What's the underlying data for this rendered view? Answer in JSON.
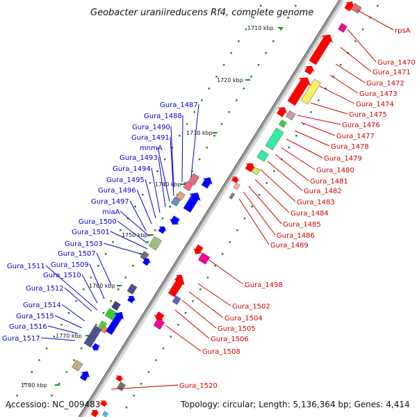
{
  "header": {
    "title": "Geobacter uraniireducens Rf4, complete genome"
  },
  "footer": {
    "accession": "Accession: NC_009483",
    "summary": "Topology: circular; Length: 5,136,364 bp; Genes: 4,414"
  },
  "colors": {
    "red_label": "#d00000",
    "blue_label": "#0000cc",
    "backbone": "#9a9a9a",
    "tick": "#1a8a1a"
  },
  "ruler": [
    {
      "label": "1710 kbp"
    },
    {
      "label": "1720 kbp"
    },
    {
      "label": "1730 kbp"
    },
    {
      "label": "1740 kbp"
    },
    {
      "label": "1750 kbp"
    },
    {
      "label": "1760 kbp"
    },
    {
      "label": "1770 kbp"
    },
    {
      "label": "1780 kbp"
    }
  ],
  "labels_right": [
    "rpsA",
    "Gura_1470",
    "Gura_1471",
    "Gura_1472",
    "Gura_1473",
    "Gura_1474",
    "Gura_1475",
    "Gura_1476",
    "Gura_1477",
    "Gura_1478",
    "Gura_1479",
    "Gura_1480",
    "Gura_1481",
    "Gura_1482",
    "Gura_1483",
    "Gura_1484",
    "Gura_1485",
    "Gura_1486",
    "Gura_1489",
    "Gura_1498",
    "Gura_1502",
    "Gura_1504",
    "Gura_1505",
    "Gura_1506",
    "Gura_1508",
    "Gura_1520"
  ],
  "labels_left": [
    "Gura_1487",
    "Gura_1488",
    "Gura_1490",
    "Gura_1491",
    "mnmA",
    "Gura_1493",
    "Gura_1494",
    "Gura_1495",
    "Gura_1496",
    "Gura_1497",
    "miaA",
    "Gura_1500",
    "Gura_1501",
    "Gura_1503",
    "Gura_1507",
    "Gura_1511",
    "Gura_1509",
    "Gura_1510",
    "Gura_1512",
    "Gura_1514",
    "Gura_1515",
    "Gura_1516",
    "Gura_1517"
  ]
}
